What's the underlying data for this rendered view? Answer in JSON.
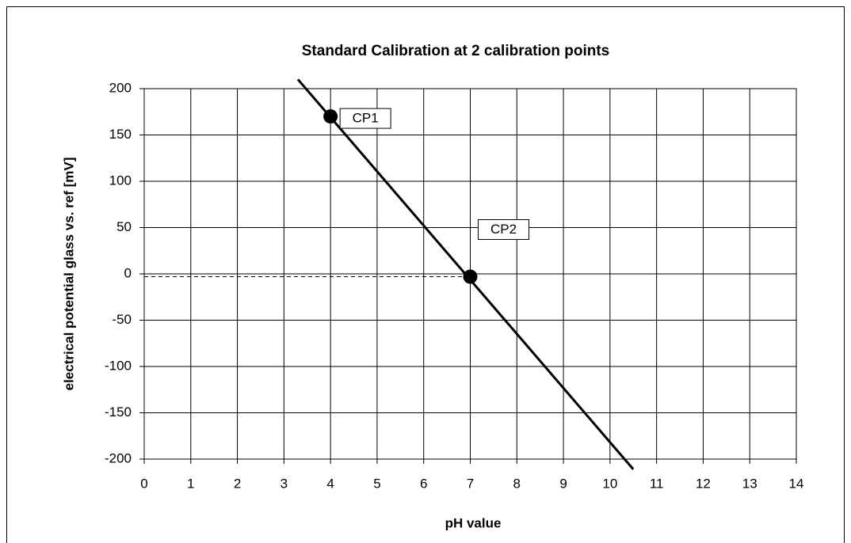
{
  "chart_data": {
    "type": "line",
    "title": "Standard Calibration at 2 calibration points",
    "x_label": "pH value",
    "y_label": "electrical potential glass vs. ref [mV]",
    "xlim": [
      0,
      14
    ],
    "xticks": [
      0,
      1,
      2,
      3,
      4,
      5,
      6,
      7,
      8,
      9,
      10,
      11,
      12,
      13,
      14
    ],
    "ylim": [
      -200,
      200
    ],
    "yticks": [
      -200,
      -150,
      -100,
      -50,
      0,
      50,
      100,
      150,
      200
    ],
    "grid": true,
    "series": [
      {
        "color": "#000000",
        "x": [
          3.3,
          10.5
        ],
        "values": [
          210,
          -211
        ]
      },
      {
        "color": "#000000",
        "x": [
          4,
          7
        ],
        "values": [
          170,
          -3
        ],
        "point_labels": [
          "CP1",
          "CP2"
        ]
      }
    ]
  }
}
